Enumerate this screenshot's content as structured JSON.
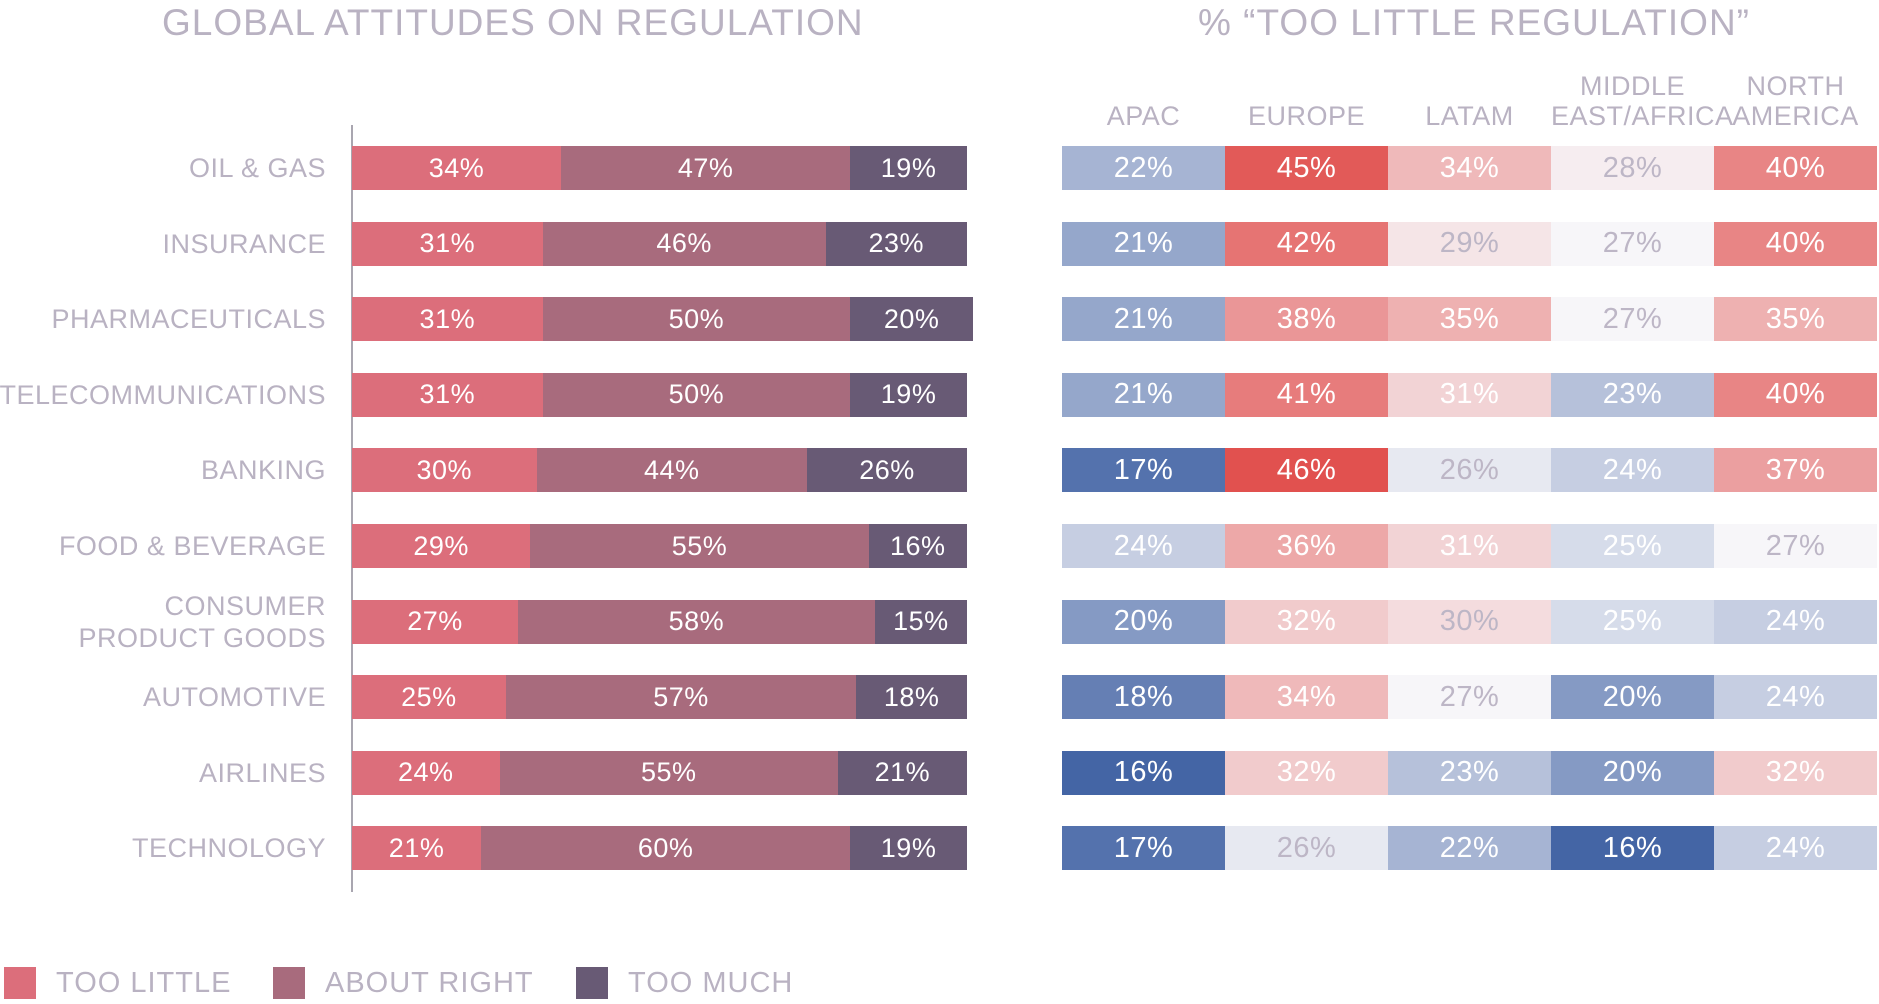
{
  "chart_data": [
    {
      "type": "bar",
      "orientation": "horizontal",
      "stacked": true,
      "title": "GLOBAL ATTITUDES ON REGULATION",
      "categories": [
        "OIL & GAS",
        "INSURANCE",
        "PHARMACEUTICALS",
        "TELECOMMUNICATIONS",
        "BANKING",
        "FOOD & BEVERAGE",
        "CONSUMER PRODUCT GOODS",
        "AUTOMOTIVE",
        "AIRLINES",
        "TECHNOLOGY"
      ],
      "category_lines": [
        [
          "OIL & GAS"
        ],
        [
          "INSURANCE"
        ],
        [
          "PHARMACEUTICALS"
        ],
        [
          "TELECOMMUNICATIONS"
        ],
        [
          "BANKING"
        ],
        [
          "FOOD & BEVERAGE"
        ],
        [
          "CONSUMER",
          "PRODUCT GOODS"
        ],
        [
          "AUTOMOTIVE"
        ],
        [
          "AIRLINES"
        ],
        [
          "TECHNOLOGY"
        ]
      ],
      "series": [
        {
          "name": "TOO LITTLE",
          "color": "#dc6e7b",
          "values": [
            34,
            31,
            31,
            31,
            30,
            29,
            27,
            25,
            24,
            21
          ]
        },
        {
          "name": "ABOUT RIGHT",
          "color": "#a86b7d",
          "values": [
            47,
            46,
            50,
            50,
            44,
            55,
            58,
            57,
            55,
            60
          ]
        },
        {
          "name": "TOO MUCH",
          "color": "#685a75",
          "values": [
            19,
            23,
            20,
            19,
            26,
            16,
            15,
            18,
            21,
            19
          ]
        }
      ],
      "value_suffix": "%",
      "xlim": [
        0,
        100
      ],
      "legend": "bottom-left"
    },
    {
      "type": "heatmap",
      "title": "% “TOO LITTLE REGULATION”",
      "columns": [
        "APAC",
        "EUROPE",
        "LATAM",
        "MIDDLE EAST/AFRICA",
        "NORTH AMERICA"
      ],
      "column_lines": [
        [
          "APAC"
        ],
        [
          "EUROPE"
        ],
        [
          "LATAM"
        ],
        [
          "MIDDLE",
          "EAST/AFRICA"
        ],
        [
          "NORTH",
          "AMERICA"
        ]
      ],
      "rows": [
        "OIL & GAS",
        "INSURANCE",
        "PHARMACEUTICALS",
        "TELECOMMUNICATIONS",
        "BANKING",
        "FOOD & BEVERAGE",
        "CONSUMER PRODUCT GOODS",
        "AUTOMOTIVE",
        "AIRLINES",
        "TECHNOLOGY"
      ],
      "values": [
        [
          22,
          45,
          34,
          28,
          40
        ],
        [
          21,
          42,
          29,
          27,
          40
        ],
        [
          21,
          38,
          35,
          27,
          35
        ],
        [
          21,
          41,
          31,
          23,
          40
        ],
        [
          17,
          46,
          26,
          24,
          37
        ],
        [
          24,
          36,
          31,
          25,
          27
        ],
        [
          20,
          32,
          30,
          25,
          24
        ],
        [
          18,
          34,
          27,
          20,
          24
        ],
        [
          16,
          32,
          23,
          20,
          32
        ],
        [
          17,
          26,
          22,
          16,
          24
        ]
      ],
      "value_suffix": "%",
      "color_scale": {
        "low": "#4465a5",
        "mid": "#f7f6f9",
        "high": "#e1514f"
      }
    }
  ]
}
